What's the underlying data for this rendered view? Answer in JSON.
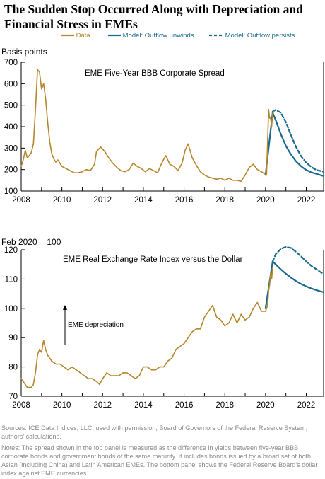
{
  "title": "The Sudden Stop Occurred Along with Depreciation and Financial Stress in EMEs",
  "legend": {
    "data": "Data",
    "unwinds": "Model: Outflow unwinds",
    "persists": "Model: Outflow persists"
  },
  "colors": {
    "data": "#b5862b",
    "model": "#1a6a8e",
    "axis": "#000000"
  },
  "source_note": "Sources: ICE Data Indices, LLC, used with permission; Board of Governors of the Federal Reserve System; authors' calculations.",
  "notes": "Notes: The spread shown in the top panel is measured as the difference in yields between five-year BBB corporate bonds and government bonds of the same maturity. It includes bonds issued by a broad set of both Asian (including China) and Latin American EMEs. The bottom panel shows the Federal Reserve Board's dollar index against EME currencies.",
  "chart_data": [
    {
      "type": "line",
      "title": "EME Five-Year BBB Corporate Spread",
      "ylabel": "Basis points",
      "xlim": [
        2008,
        2022.85
      ],
      "ylim": [
        100,
        700
      ],
      "xticks": [
        2008,
        2010,
        2012,
        2014,
        2016,
        2018,
        2020,
        2022
      ],
      "yticks": [
        100,
        200,
        300,
        400,
        500,
        600,
        700
      ],
      "grid": false,
      "series": [
        {
          "name": "Data",
          "x": [
            2008.0,
            2008.1,
            2008.2,
            2008.3,
            2008.4,
            2008.5,
            2008.6,
            2008.7,
            2008.8,
            2008.9,
            2009.0,
            2009.1,
            2009.2,
            2009.3,
            2009.4,
            2009.5,
            2009.6,
            2009.7,
            2009.8,
            2009.9,
            2010.0,
            2010.2,
            2010.4,
            2010.6,
            2010.8,
            2011.0,
            2011.2,
            2011.4,
            2011.6,
            2011.7,
            2011.9,
            2012.1,
            2012.3,
            2012.5,
            2012.7,
            2012.9,
            2013.1,
            2013.3,
            2013.5,
            2013.7,
            2013.9,
            2014.1,
            2014.3,
            2014.5,
            2014.7,
            2014.9,
            2015.1,
            2015.3,
            2015.5,
            2015.7,
            2015.9,
            2016.05,
            2016.2,
            2016.4,
            2016.6,
            2016.8,
            2017.0,
            2017.2,
            2017.4,
            2017.6,
            2017.8,
            2018.0,
            2018.2,
            2018.4,
            2018.6,
            2018.8,
            2019.0,
            2019.2,
            2019.4,
            2019.6,
            2019.8,
            2019.95,
            2020.05,
            2020.1,
            2020.15,
            2020.2,
            2020.25,
            2020.3,
            2020.35,
            2020.4
          ],
          "y": [
            215,
            245,
            290,
            255,
            265,
            280,
            320,
            480,
            665,
            655,
            575,
            600,
            530,
            420,
            330,
            275,
            250,
            235,
            245,
            230,
            215,
            205,
            195,
            185,
            185,
            190,
            200,
            195,
            225,
            285,
            305,
            285,
            255,
            230,
            210,
            195,
            190,
            200,
            230,
            215,
            205,
            190,
            205,
            195,
            185,
            230,
            265,
            225,
            215,
            195,
            230,
            290,
            320,
            255,
            220,
            190,
            175,
            165,
            160,
            155,
            160,
            150,
            160,
            150,
            150,
            145,
            175,
            210,
            225,
            200,
            190,
            180,
            175,
            320,
            480,
            440,
            440,
            400,
            460,
            470
          ]
        },
        {
          "name": "Model: Outflow unwinds",
          "x": [
            2020.0,
            2020.35,
            2020.5,
            2020.75,
            2021.0,
            2021.25,
            2021.5,
            2021.75,
            2022.0,
            2022.25,
            2022.5,
            2022.85
          ],
          "y": [
            175,
            465,
            430,
            365,
            310,
            270,
            238,
            215,
            198,
            187,
            180,
            170
          ]
        },
        {
          "name": "Model: Outflow persists",
          "x": [
            2020.35,
            2020.5,
            2020.75,
            2021.0,
            2021.25,
            2021.5,
            2021.75,
            2022.0,
            2022.25,
            2022.5,
            2022.85
          ],
          "y": [
            470,
            478,
            465,
            420,
            360,
            305,
            262,
            232,
            212,
            198,
            190
          ]
        }
      ]
    },
    {
      "type": "line",
      "title": "EME Real Exchange Rate Index versus the Dollar",
      "ylabel": "Feb 2020 = 100",
      "annotation": "EME depreciation",
      "xlim": [
        2008,
        2022.85
      ],
      "ylim": [
        70,
        120
      ],
      "xticks": [
        2008,
        2010,
        2012,
        2014,
        2016,
        2018,
        2020,
        2022
      ],
      "yticks": [
        70,
        80,
        90,
        100,
        110,
        120
      ],
      "grid": false,
      "series": [
        {
          "name": "Data",
          "x": [
            2008.0,
            2008.1,
            2008.2,
            2008.3,
            2008.4,
            2008.5,
            2008.6,
            2008.7,
            2008.8,
            2008.9,
            2009.0,
            2009.1,
            2009.2,
            2009.3,
            2009.4,
            2009.5,
            2009.7,
            2009.9,
            2010.1,
            2010.3,
            2010.5,
            2010.7,
            2010.9,
            2011.1,
            2011.3,
            2011.5,
            2011.7,
            2011.85,
            2012.0,
            2012.2,
            2012.4,
            2012.6,
            2012.8,
            2013.0,
            2013.2,
            2013.4,
            2013.6,
            2013.8,
            2014.0,
            2014.2,
            2014.4,
            2014.6,
            2014.8,
            2015.0,
            2015.2,
            2015.4,
            2015.6,
            2015.8,
            2016.0,
            2016.2,
            2016.4,
            2016.6,
            2016.8,
            2017.0,
            2017.2,
            2017.4,
            2017.6,
            2017.8,
            2018.0,
            2018.2,
            2018.4,
            2018.6,
            2018.8,
            2019.0,
            2019.2,
            2019.4,
            2019.6,
            2019.8,
            2020.0,
            2020.1,
            2020.15,
            2020.2,
            2020.25,
            2020.3,
            2020.35
          ],
          "y": [
            76,
            75,
            74,
            73,
            73,
            73,
            74,
            78,
            84,
            86,
            85,
            89,
            86,
            84,
            83,
            82,
            81,
            81,
            80,
            79,
            80,
            79,
            78,
            77,
            76,
            76,
            75,
            74,
            76,
            78,
            77,
            77,
            77,
            78,
            78,
            77,
            76,
            77,
            80,
            80,
            79,
            79,
            80,
            80,
            82,
            83,
            86,
            87,
            88,
            90,
            92,
            93,
            93,
            97,
            99,
            101,
            97,
            96,
            94,
            95,
            98,
            95,
            98,
            96,
            97,
            100,
            102,
            99,
            99,
            101,
            106,
            108,
            112,
            110,
            114
          ]
        },
        {
          "name": "Model: Outflow unwinds",
          "x": [
            2020.0,
            2020.35,
            2020.5,
            2020.75,
            2021.0,
            2021.25,
            2021.5,
            2021.75,
            2022.0,
            2022.25,
            2022.5,
            2022.85
          ],
          "y": [
            100,
            116,
            115,
            113.3,
            111.8,
            110.5,
            109.3,
            108.3,
            107.5,
            106.8,
            106.2,
            105.5
          ]
        },
        {
          "name": "Model: Outflow persists",
          "x": [
            2020.35,
            2020.5,
            2020.75,
            2021.0,
            2021.25,
            2021.5,
            2021.75,
            2022.0,
            2022.25,
            2022.5,
            2022.85
          ],
          "y": [
            116,
            118.5,
            120.3,
            121,
            120.6,
            119.3,
            117.7,
            116,
            114.5,
            113.3,
            111.7
          ]
        }
      ]
    }
  ]
}
